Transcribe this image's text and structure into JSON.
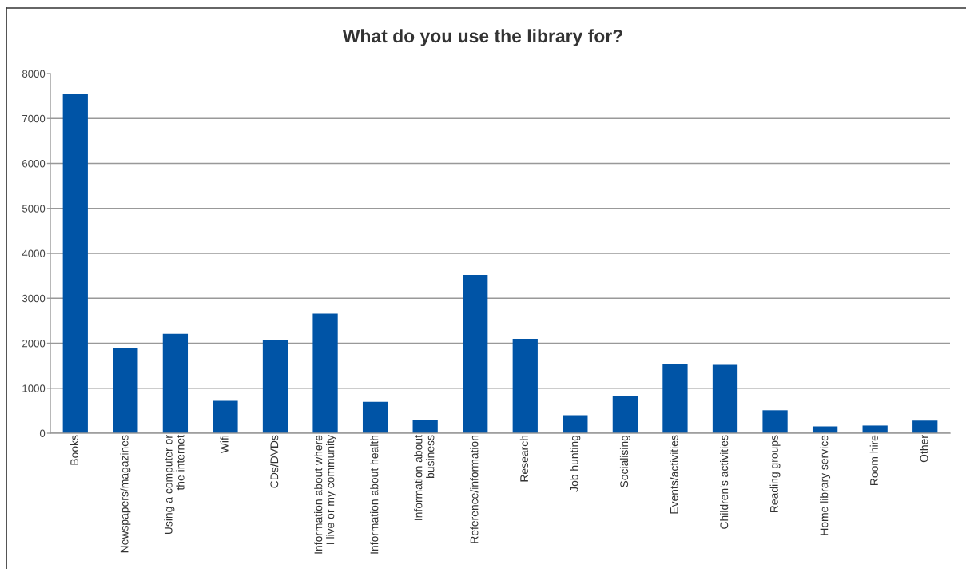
{
  "chart_data": {
    "type": "bar",
    "title": "What do you use the library for?",
    "categories": [
      "Books",
      "Newspapers/magazines",
      "Using a computer or\nthe internet",
      "Wifi",
      "CDs/DVDs",
      "Information about where\nI live or my community",
      "Information about health",
      "Information about\nbusiness",
      "Reference/information",
      "Research",
      "Job hunting",
      "Socialising",
      "Events/activities",
      "Children's activities",
      "Reading groups",
      "Home library service",
      "Room hire",
      "Other"
    ],
    "values": [
      7550,
      1890,
      2210,
      720,
      2070,
      2660,
      700,
      290,
      3520,
      2100,
      400,
      830,
      1540,
      1520,
      510,
      150,
      170,
      280
    ],
    "color": "#0054a6",
    "ylim": [
      0,
      8000
    ],
    "yticks": [
      0,
      1000,
      2000,
      3000,
      4000,
      5000,
      6000,
      7000,
      8000
    ],
    "grid": "y"
  }
}
